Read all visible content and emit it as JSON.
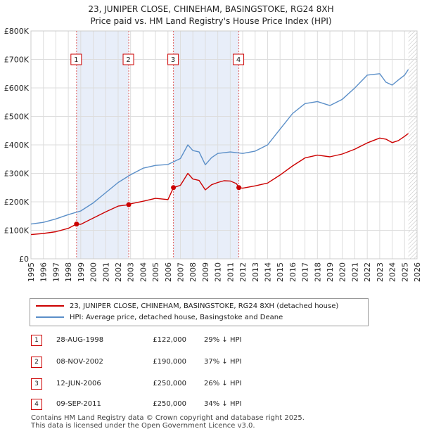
{
  "header": {
    "title": "23, JUNIPER CLOSE, CHINEHAM, BASINGSTOKE, RG24 8XH",
    "subtitle": "Price paid vs. HM Land Registry's House Price Index (HPI)"
  },
  "colors": {
    "price_line": "#cc0000",
    "hpi_line": "#5b8fc8",
    "shade": "#e8eef9",
    "marker_border": "#cc0000"
  },
  "chart_data": {
    "type": "line",
    "title": "Price paid vs. HM Land Registry's House Price Index (HPI)",
    "xlabel": "",
    "ylabel": "",
    "xlim": [
      1995,
      2026
    ],
    "ylim": [
      0,
      800000
    ],
    "grid": true,
    "y_ticks": [
      {
        "value": 0,
        "label": "£0"
      },
      {
        "value": 100000,
        "label": "£100K"
      },
      {
        "value": 200000,
        "label": "£200K"
      },
      {
        "value": 300000,
        "label": "£300K"
      },
      {
        "value": 400000,
        "label": "£400K"
      },
      {
        "value": 500000,
        "label": "£500K"
      },
      {
        "value": 600000,
        "label": "£600K"
      },
      {
        "value": 700000,
        "label": "£700K"
      },
      {
        "value": 800000,
        "label": "£800K"
      }
    ],
    "x_ticks": [
      "1995",
      "1996",
      "1997",
      "1998",
      "1999",
      "2000",
      "2001",
      "2002",
      "2003",
      "2004",
      "2005",
      "2006",
      "2007",
      "2008",
      "2009",
      "2010",
      "2011",
      "2012",
      "2013",
      "2014",
      "2015",
      "2016",
      "2017",
      "2018",
      "2019",
      "2020",
      "2021",
      "2022",
      "2023",
      "2024",
      "2025",
      "2026"
    ],
    "series": [
      {
        "name": "23, JUNIPER CLOSE, CHINEHAM, BASINGSTOKE, RG24 8XH (detached house)",
        "x": [
          1995.0,
          1996.0,
          1997.0,
          1998.0,
          1998.66,
          1999.0,
          2000.0,
          2001.0,
          2002.0,
          2002.85,
          2003.0,
          2004.0,
          2005.0,
          2006.0,
          2006.44,
          2007.0,
          2007.6,
          2008.0,
          2008.5,
          2009.0,
          2009.5,
          2010.0,
          2010.5,
          2011.0,
          2011.5,
          2011.69,
          2012.0,
          2013.0,
          2014.0,
          2015.0,
          2016.0,
          2017.0,
          2018.0,
          2019.0,
          2020.0,
          2021.0,
          2022.0,
          2023.0,
          2023.5,
          2024.0,
          2024.5,
          2025.0,
          2025.3
        ],
        "y": [
          85000,
          89000,
          95000,
          107000,
          122000,
          121000,
          143000,
          165000,
          185000,
          190000,
          193000,
          202000,
          212000,
          208000,
          250000,
          258000,
          300000,
          280000,
          275000,
          242000,
          260000,
          268000,
          274000,
          273000,
          264000,
          250000,
          248000,
          256000,
          266000,
          294000,
          326000,
          354000,
          364000,
          358000,
          368000,
          385000,
          407000,
          424000,
          420000,
          408000,
          415000,
          430000,
          440000
        ]
      },
      {
        "name": "HPI: Average price, detached house, Basingstoke and Deane",
        "x": [
          1995.0,
          1996.0,
          1997.0,
          1998.0,
          1999.0,
          2000.0,
          2001.0,
          2002.0,
          2003.0,
          2004.0,
          2005.0,
          2006.0,
          2007.0,
          2007.6,
          2008.0,
          2008.5,
          2009.0,
          2009.5,
          2010.0,
          2011.0,
          2012.0,
          2013.0,
          2014.0,
          2015.0,
          2016.0,
          2017.0,
          2018.0,
          2019.0,
          2020.0,
          2021.0,
          2022.0,
          2023.0,
          2023.5,
          2024.0,
          2024.5,
          2025.0,
          2025.3
        ],
        "y": [
          122000,
          128000,
          140000,
          155000,
          168000,
          196000,
          232000,
          268000,
          295000,
          318000,
          328000,
          331000,
          352000,
          400000,
          380000,
          375000,
          330000,
          355000,
          370000,
          375000,
          370000,
          378000,
          400000,
          455000,
          510000,
          545000,
          552000,
          538000,
          560000,
          600000,
          645000,
          650000,
          620000,
          610000,
          628000,
          645000,
          665000
        ]
      }
    ],
    "annotations": [
      {
        "label": "1",
        "x": 1998.66,
        "y": 122000
      },
      {
        "label": "2",
        "x": 2002.85,
        "y": 190000
      },
      {
        "label": "3",
        "x": 2006.44,
        "y": 250000
      },
      {
        "label": "4",
        "x": 2011.69,
        "y": 250000
      }
    ],
    "shaded_ranges": [
      [
        1998.66,
        2002.85
      ],
      [
        2006.44,
        2011.69
      ]
    ],
    "forecast_start": 2025.3
  },
  "legend": {
    "items": [
      "23, JUNIPER CLOSE, CHINEHAM, BASINGSTOKE, RG24 8XH (detached house)",
      "HPI: Average price, detached house, Basingstoke and Deane"
    ]
  },
  "transactions": [
    {
      "num": "1",
      "date": "28-AUG-1998",
      "price": "£122,000",
      "hpi": "29% ↓ HPI"
    },
    {
      "num": "2",
      "date": "08-NOV-2002",
      "price": "£190,000",
      "hpi": "37% ↓ HPI"
    },
    {
      "num": "3",
      "date": "12-JUN-2006",
      "price": "£250,000",
      "hpi": "26% ↓ HPI"
    },
    {
      "num": "4",
      "date": "09-SEP-2011",
      "price": "£250,000",
      "hpi": "34% ↓ HPI"
    }
  ],
  "footer": {
    "line1": "Contains HM Land Registry data © Crown copyright and database right 2025.",
    "line2": "This data is licensed under the Open Government Licence v3.0."
  }
}
